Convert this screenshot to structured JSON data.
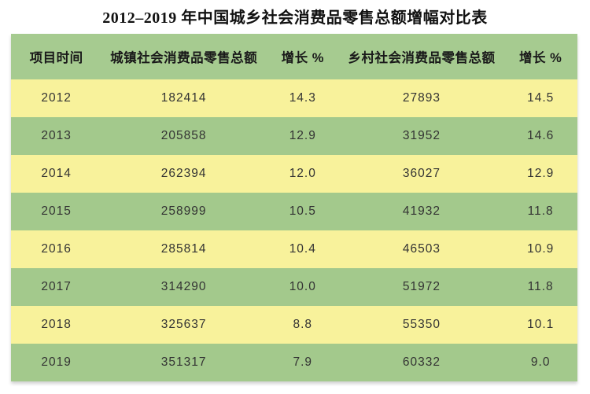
{
  "page": {
    "title": "2012–2019 年中国城乡社会消费品零售总额增幅对比表"
  },
  "table": {
    "columns": [
      "项目时间",
      "城镇社会消费品零售总额",
      "增长 %",
      "乡村社会消费品零售总额",
      "增长 %"
    ],
    "rows": [
      [
        "2012",
        "182414",
        "14.3",
        "27893",
        "14.5"
      ],
      [
        "2013",
        "205858",
        "12.9",
        "31952",
        "14.6"
      ],
      [
        "2014",
        "262394",
        "12.0",
        "36027",
        "12.9"
      ],
      [
        "2015",
        "258999",
        "10.5",
        "41932",
        "11.8"
      ],
      [
        "2016",
        "285814",
        "10.4",
        "46503",
        "10.9"
      ],
      [
        "2017",
        "314290",
        "10.0",
        "51972",
        "11.8"
      ],
      [
        "2018",
        "325637",
        "8.8",
        "55350",
        "10.1"
      ],
      [
        "2019",
        "351317",
        "7.9",
        "60332",
        "9.0"
      ]
    ]
  },
  "colors": {
    "header_green": "#a6cb90",
    "row_green": "#a3c98c",
    "row_yellow": "#f8f29b",
    "text": "#333333"
  },
  "chart_data": {
    "type": "table",
    "title": "2012–2019 年中国城乡社会消费品零售总额增幅对比表",
    "columns": [
      "项目时间",
      "城镇社会消费品零售总额",
      "增长 %",
      "乡村社会消费品零售总额",
      "增长 %"
    ],
    "years": [
      2012,
      2013,
      2014,
      2015,
      2016,
      2017,
      2018,
      2019
    ],
    "series": [
      {
        "name": "城镇社会消费品零售总额",
        "values": [
          182414,
          205858,
          262394,
          258999,
          285814,
          314290,
          325637,
          351317
        ]
      },
      {
        "name": "城镇增长 %",
        "values": [
          14.3,
          12.9,
          12.0,
          10.5,
          10.4,
          10.0,
          8.8,
          7.9
        ]
      },
      {
        "name": "乡村社会消费品零售总额",
        "values": [
          27893,
          31952,
          36027,
          41932,
          46503,
          51972,
          55350,
          60332
        ]
      },
      {
        "name": "乡村增长 %",
        "values": [
          14.5,
          14.6,
          12.9,
          11.8,
          10.9,
          11.8,
          10.1,
          9.0
        ]
      }
    ],
    "layout_hints": {
      "row_striping": "alternating yellow/green starting yellow at 2012",
      "header_background": "green",
      "alignment": "center"
    }
  }
}
